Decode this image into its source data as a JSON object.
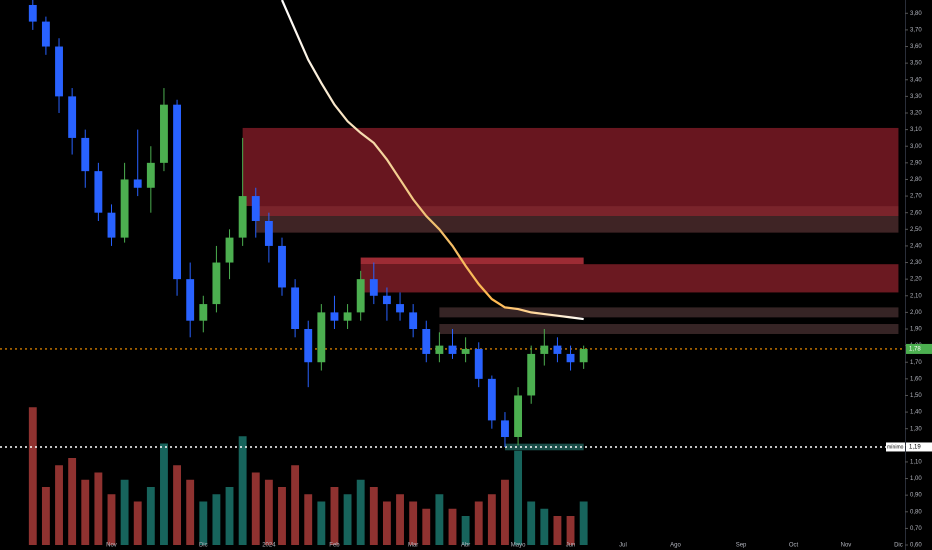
{
  "chart_data": {
    "type": "candlestick",
    "categories": [
      null,
      null,
      null,
      null,
      null,
      null,
      null,
      null,
      "Nov",
      null,
      null,
      null,
      null,
      null,
      null,
      "Dic",
      null,
      null,
      null,
      null,
      "2024",
      null,
      null,
      null,
      null,
      "Feb",
      null,
      null,
      null,
      null,
      null,
      "Mar",
      null,
      null,
      null,
      "Abr",
      null,
      null,
      null,
      "Mayo",
      null,
      null,
      null,
      "Jun",
      null,
      null,
      null,
      "Jul",
      null,
      null,
      null,
      "Ago",
      null,
      null,
      null,
      null,
      "Sep",
      null,
      null,
      null,
      "Oct",
      null,
      null,
      null,
      "Nov",
      null,
      null,
      null,
      "Dic"
    ],
    "open": [
      null,
      null,
      3.85,
      3.75,
      3.6,
      3.3,
      3.05,
      2.85,
      2.6,
      2.45,
      2.8,
      2.75,
      2.9,
      3.25,
      2.2,
      1.95,
      2.05,
      2.3,
      2.45,
      2.7,
      2.55,
      2.4,
      2.15,
      1.9,
      1.7,
      2.0,
      1.95,
      2.0,
      2.2,
      2.1,
      2.05,
      2.0,
      1.9,
      1.75,
      1.8,
      1.75,
      1.78,
      1.6,
      1.35,
      1.25,
      1.5,
      1.75,
      1.8,
      1.75,
      1.7,
      null,
      null,
      null,
      null,
      null,
      null,
      null,
      null,
      null,
      null,
      null,
      null,
      null,
      null,
      null,
      null,
      null,
      null,
      null,
      null,
      null,
      null,
      null,
      null
    ],
    "high": [
      null,
      null,
      3.88,
      3.78,
      3.65,
      3.35,
      3.1,
      2.9,
      2.65,
      2.9,
      3.1,
      3.0,
      3.35,
      3.28,
      2.3,
      2.1,
      2.4,
      2.5,
      3.05,
      2.75,
      2.6,
      2.45,
      2.2,
      1.95,
      2.05,
      2.1,
      2.05,
      2.25,
      2.3,
      2.15,
      2.12,
      2.05,
      1.95,
      1.88,
      1.9,
      1.85,
      1.82,
      1.62,
      1.4,
      1.55,
      1.8,
      1.9,
      1.85,
      1.8,
      1.8,
      null,
      null,
      null,
      null,
      null,
      null,
      null,
      null,
      null,
      null,
      null,
      null,
      null,
      null,
      null,
      null,
      null,
      null,
      null,
      null,
      null,
      null,
      null,
      null
    ],
    "low": [
      null,
      null,
      3.7,
      3.55,
      3.2,
      2.95,
      2.75,
      2.55,
      2.4,
      2.42,
      2.7,
      2.6,
      2.85,
      2.1,
      1.85,
      1.88,
      2.0,
      2.2,
      2.4,
      2.45,
      2.3,
      2.1,
      1.85,
      1.55,
      1.65,
      1.9,
      1.9,
      1.95,
      2.05,
      1.95,
      1.95,
      1.85,
      1.7,
      1.7,
      1.72,
      1.7,
      1.55,
      1.3,
      1.19,
      1.2,
      1.45,
      1.68,
      1.7,
      1.65,
      1.66,
      null,
      null,
      null,
      null,
      null,
      null,
      null,
      null,
      null,
      null,
      null,
      null,
      null,
      null,
      null,
      null,
      null,
      null,
      null,
      null,
      null,
      null,
      null,
      null
    ],
    "close": [
      null,
      null,
      3.75,
      3.6,
      3.3,
      3.05,
      2.85,
      2.6,
      2.45,
      2.8,
      2.75,
      2.9,
      3.25,
      2.2,
      1.95,
      2.05,
      2.3,
      2.45,
      2.7,
      2.55,
      2.4,
      2.15,
      1.9,
      1.7,
      2.0,
      1.95,
      2.0,
      2.2,
      2.1,
      2.05,
      2.0,
      1.9,
      1.75,
      1.8,
      1.75,
      1.78,
      1.6,
      1.35,
      1.25,
      1.5,
      1.75,
      1.8,
      1.75,
      1.7,
      1.78,
      null,
      null,
      null,
      null,
      null,
      null,
      null,
      null,
      null,
      null,
      null,
      null,
      null,
      null,
      null,
      null,
      null,
      null,
      null,
      null,
      null,
      null,
      null,
      null
    ],
    "volume": [
      null,
      null,
      95,
      40,
      55,
      60,
      45,
      50,
      35,
      45,
      30,
      40,
      70,
      55,
      45,
      30,
      35,
      40,
      75,
      50,
      45,
      40,
      55,
      35,
      30,
      40,
      35,
      45,
      40,
      30,
      35,
      30,
      25,
      35,
      25,
      20,
      30,
      35,
      45,
      65,
      30,
      25,
      20,
      20,
      30,
      null,
      null,
      null,
      null,
      null,
      null,
      null,
      null,
      null,
      null,
      null,
      null,
      null,
      null,
      null,
      null,
      null,
      null,
      null,
      null,
      null,
      null,
      null,
      null
    ],
    "up_color": "#4caf50",
    "down_color": "#2962ff",
    "volume_up_color": "#26a69a",
    "volume_down_color": "#ef5350",
    "y2lim": [
      0,
      100
    ],
    "ma": {
      "color": "#ffffff",
      "values": [
        null,
        null,
        null,
        null,
        null,
        null,
        null,
        null,
        null,
        null,
        null,
        null,
        null,
        null,
        null,
        null,
        null,
        null,
        null,
        null,
        null,
        3.88,
        3.7,
        3.52,
        3.38,
        3.25,
        3.15,
        3.08,
        3.02,
        2.92,
        2.8,
        2.68,
        2.58,
        2.5,
        2.4,
        2.28,
        2.17,
        2.08,
        2.03,
        2.02,
        2.0,
        1.99,
        1.98,
        1.97,
        1.96,
        null,
        null,
        null,
        null,
        null,
        null,
        null,
        null,
        null,
        null,
        null,
        null,
        null,
        null,
        null,
        null,
        null,
        null,
        null,
        null,
        null,
        null,
        null,
        null
      ]
    },
    "zones": [
      {
        "start": 18,
        "end": 68,
        "low": 2.64,
        "high": 3.11,
        "color": "#7a1a24"
      },
      {
        "start": 19,
        "end": 68,
        "low": 2.58,
        "high": 2.64,
        "color": "#8f2a33"
      },
      {
        "start": 19,
        "end": 68,
        "low": 2.48,
        "high": 2.58,
        "color": "#4a2a2c"
      },
      {
        "start": 27,
        "end": 68,
        "low": 2.12,
        "high": 2.29,
        "color": "#7e1d27"
      },
      {
        "start": 27,
        "end": 44,
        "low": 2.29,
        "high": 2.33,
        "color": "#b8323d"
      },
      {
        "start": 33,
        "end": 68,
        "low": 1.97,
        "high": 2.03,
        "color": "#3f2a2b"
      },
      {
        "start": 33,
        "end": 68,
        "low": 1.87,
        "high": 1.93,
        "color": "#3f2a2b"
      },
      {
        "start": 38,
        "end": 44,
        "low": 1.17,
        "high": 1.21,
        "color": "#1d5a55"
      }
    ],
    "ylim": [
      0.57,
      3.88
    ],
    "yticks": [
      {
        "value": 0.6,
        "label": "0,60"
      },
      {
        "value": 0.7,
        "label": "0,70"
      },
      {
        "value": 0.8,
        "label": "0,80"
      },
      {
        "value": 0.9,
        "label": "0,90"
      },
      {
        "value": 1.0,
        "label": "1,00"
      },
      {
        "value": 1.1,
        "label": "1,10"
      },
      {
        "value": 1.2,
        "label": "1,20"
      },
      {
        "value": 1.3,
        "label": "1,30"
      },
      {
        "value": 1.4,
        "label": "1,40"
      },
      {
        "value": 1.5,
        "label": "1,50"
      },
      {
        "value": 1.6,
        "label": "1,60"
      },
      {
        "value": 1.7,
        "label": "1,70"
      },
      {
        "value": 1.8,
        "label": "1,80"
      },
      {
        "value": 1.9,
        "label": "1,90"
      },
      {
        "value": 2.0,
        "label": "2,00"
      },
      {
        "value": 2.1,
        "label": "2,10"
      },
      {
        "value": 2.2,
        "label": "2,20"
      },
      {
        "value": 2.3,
        "label": "2,30"
      },
      {
        "value": 2.4,
        "label": "2,40"
      },
      {
        "value": 2.5,
        "label": "2,50"
      },
      {
        "value": 2.6,
        "label": "2,60"
      },
      {
        "value": 2.7,
        "label": "2,70"
      },
      {
        "value": 2.8,
        "label": "2,80"
      },
      {
        "value": 2.9,
        "label": "2,90"
      },
      {
        "value": 3.0,
        "label": "3,00"
      },
      {
        "value": 3.1,
        "label": "3,10"
      },
      {
        "value": 3.2,
        "label": "3,20"
      },
      {
        "value": 3.3,
        "label": "3,30"
      },
      {
        "value": 3.4,
        "label": "3,40"
      },
      {
        "value": 3.5,
        "label": "3,50"
      },
      {
        "value": 3.6,
        "label": "3,60"
      },
      {
        "value": 3.7,
        "label": "3,70"
      },
      {
        "value": 3.8,
        "label": "3,80"
      }
    ],
    "last_price": {
      "value": 1.78,
      "label": "1,78",
      "color": "#4caf50",
      "line_color": "#ff9800"
    },
    "low_marker": {
      "title": "mínimo",
      "value": 1.19,
      "label": "1,19"
    }
  }
}
